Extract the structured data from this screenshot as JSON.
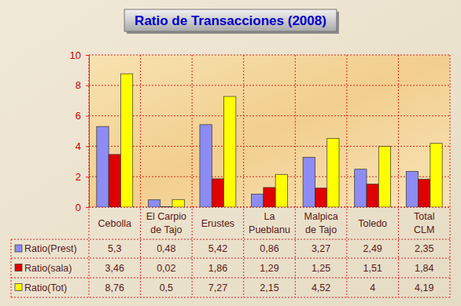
{
  "chart_data": {
    "type": "bar",
    "title": "Ratio de Transacciones (2008)",
    "categories": [
      "Cebolla",
      "El Carpio de Tajo",
      "Erustes",
      "La Pueblanu",
      "Malpica de Tajo",
      "Toledo",
      "Total CLM"
    ],
    "series": [
      {
        "name": "Ratio(Prest)",
        "color": "#8c8cf4",
        "values": [
          5.3,
          0.48,
          5.42,
          0.86,
          3.27,
          2.49,
          2.35
        ],
        "value_labels": [
          "5,3",
          "0,48",
          "5,42",
          "0,86",
          "3,27",
          "2,49",
          "2,35"
        ]
      },
      {
        "name": "Ratio(sala)",
        "color": "#e00000",
        "values": [
          3.46,
          0.02,
          1.86,
          1.29,
          1.25,
          1.51,
          1.84
        ],
        "value_labels": [
          "3,46",
          "0,02",
          "1,86",
          "1,29",
          "1,25",
          "1,51",
          "1,84"
        ]
      },
      {
        "name": "Ratio(Tot)",
        "color": "#ffff00",
        "values": [
          8.76,
          0.5,
          7.27,
          2.15,
          4.52,
          4,
          4.19
        ],
        "value_labels": [
          "8,76",
          "0,5",
          "7,27",
          "2,15",
          "4,52",
          "4",
          "4,19"
        ]
      }
    ],
    "ylim": [
      0,
      10
    ],
    "yticks": [
      0,
      2,
      4,
      6,
      8,
      10
    ],
    "grid": true
  }
}
